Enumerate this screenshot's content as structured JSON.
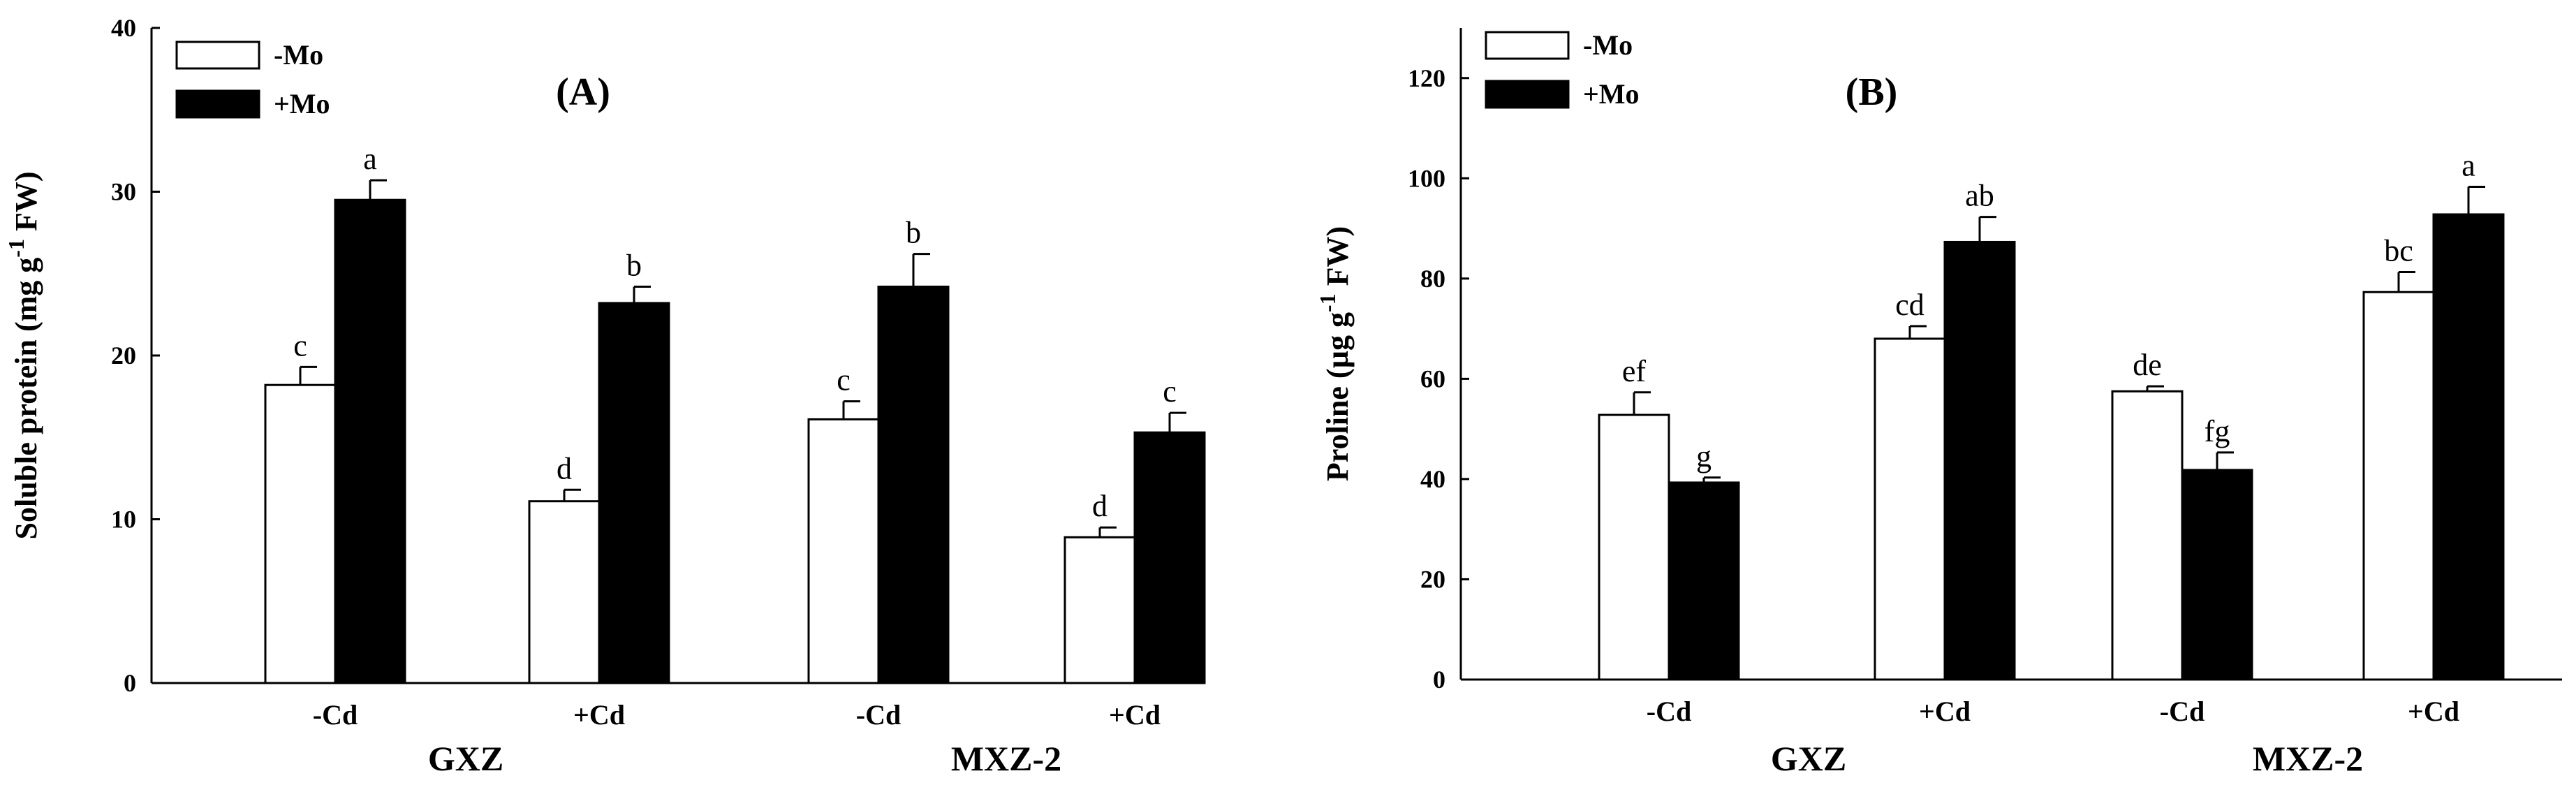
{
  "colors": {
    "minus_mo_fill": "#ffffff",
    "plus_mo_fill": "#000000",
    "axis": "#000000"
  },
  "chart_data": [
    {
      "type": "bar",
      "panel_label": "(A)",
      "ylabel": "Soluble protein (mg g-1 FW)",
      "ylabel_parts": {
        "prefix": "Soluble protein (mg g",
        "sup": "-1",
        "suffix": " FW)"
      },
      "ylim": [
        0,
        40
      ],
      "yticks": [
        0,
        10,
        20,
        30,
        40
      ],
      "legend_position": "top-left",
      "groups": [
        "GXZ",
        "MXZ-2"
      ],
      "categories": [
        "-Cd",
        "+Cd",
        "-Cd",
        "+Cd"
      ],
      "series": [
        {
          "name": "-Mo",
          "values": [
            18.2,
            11.1,
            16.1,
            8.9
          ],
          "errors": [
            1.1,
            0.7,
            1.1,
            0.6
          ],
          "letters": [
            "c",
            "d",
            "c",
            "d"
          ]
        },
        {
          "name": "+Mo",
          "values": [
            29.5,
            23.2,
            24.2,
            15.3
          ],
          "errors": [
            1.2,
            1.0,
            2.0,
            1.2
          ],
          "letters": [
            "a",
            "b",
            "b",
            "c"
          ]
        }
      ]
    },
    {
      "type": "bar",
      "panel_label": "(B)",
      "ylabel": "Proline (µg g-1 FW)",
      "ylabel_parts": {
        "prefix": "Proline (µg g",
        "sup": "-1",
        "suffix": " FW)"
      },
      "ylim": [
        0,
        130
      ],
      "yticks": [
        0,
        20,
        40,
        60,
        80,
        100,
        120
      ],
      "legend_position": "top-left",
      "groups": [
        "GXZ",
        "MXZ-2"
      ],
      "categories": [
        "-Cd",
        "+Cd",
        "-Cd",
        "+Cd"
      ],
      "series": [
        {
          "name": "-Mo",
          "values": [
            52.8,
            68.0,
            57.5,
            77.3
          ],
          "errors": [
            4.5,
            2.5,
            1.0,
            4.0
          ],
          "letters": [
            "ef",
            "cd",
            "de",
            "bc"
          ]
        },
        {
          "name": "+Mo",
          "values": [
            39.3,
            87.3,
            41.8,
            92.8
          ],
          "errors": [
            1.0,
            5.0,
            3.5,
            5.5
          ],
          "letters": [
            "g",
            "ab",
            "fg",
            "a"
          ]
        }
      ]
    }
  ]
}
